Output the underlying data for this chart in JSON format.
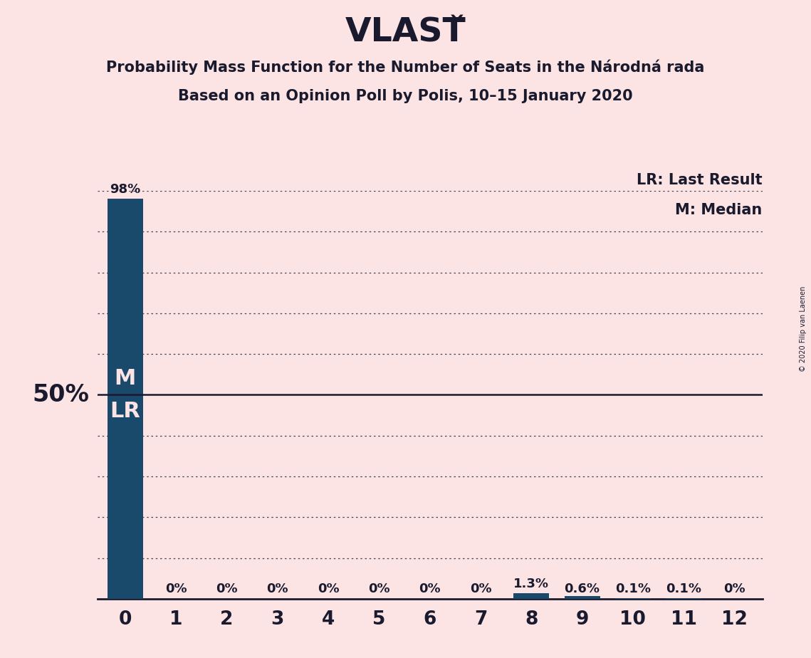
{
  "title": "VLASŤ",
  "subtitle1": "Probability Mass Function for the Number of Seats in the Národná rada",
  "subtitle2": "Based on an Opinion Poll by Polis, 10–15 January 2020",
  "copyright": "© 2020 Filip van Laenen",
  "categories": [
    0,
    1,
    2,
    3,
    4,
    5,
    6,
    7,
    8,
    9,
    10,
    11,
    12
  ],
  "values": [
    0.98,
    0.0,
    0.0,
    0.0,
    0.0,
    0.0,
    0.0,
    0.0,
    0.013,
    0.006,
    0.001,
    0.001,
    0.0
  ],
  "labels": [
    "98%",
    "0%",
    "0%",
    "0%",
    "0%",
    "0%",
    "0%",
    "0%",
    "1.3%",
    "0.6%",
    "0.1%",
    "0.1%",
    "0%"
  ],
  "bar_color": "#1a4a6b",
  "background_color": "#fce4e4",
  "text_color": "#1a1a2e",
  "ylabel_text": "50%",
  "median_label": "M",
  "lr_label": "LR",
  "legend_lr": "LR: Last Result",
  "legend_m": "M: Median",
  "ylim": [
    0,
    1.0
  ],
  "dotted_yticks": [
    0.1,
    0.2,
    0.3,
    0.4,
    0.6,
    0.7,
    0.8,
    0.9,
    1.0
  ],
  "solid_ytick": 0.5,
  "figsize": [
    11.39,
    9.24
  ],
  "dpi": 100
}
